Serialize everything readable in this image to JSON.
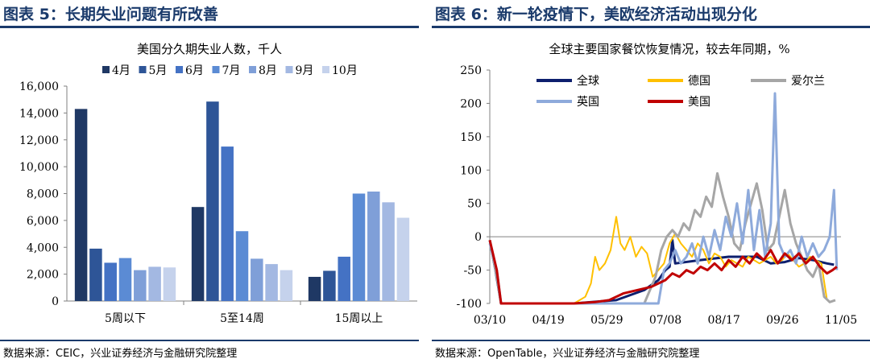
{
  "left": {
    "header": "图表 5：长期失业问题有所改善",
    "footer": "数据来源：CEIC，兴业证券经济与金融研究院整理",
    "chart_data": {
      "type": "bar",
      "title": "美国分久期失业人数，千人",
      "categories": [
        "5周以下",
        "5至14周",
        "15周以上"
      ],
      "series": [
        {
          "name": "4月",
          "color": "#1f3864",
          "values": [
            14300,
            7000,
            1800
          ]
        },
        {
          "name": "5月",
          "color": "#2e5597",
          "values": [
            3900,
            14850,
            2250
          ]
        },
        {
          "name": "6月",
          "color": "#4472c4",
          "values": [
            2850,
            11500,
            3300
          ]
        },
        {
          "name": "7月",
          "color": "#5b8bd4",
          "values": [
            3200,
            5200,
            8000
          ]
        },
        {
          "name": "8月",
          "color": "#7f9fd8",
          "values": [
            2300,
            3150,
            8150
          ]
        },
        {
          "name": "9月",
          "color": "#a3b8e2",
          "values": [
            2550,
            2750,
            7350
          ]
        },
        {
          "name": "10月",
          "color": "#c5d2ec",
          "values": [
            2500,
            2300,
            6200
          ]
        }
      ],
      "ylim": [
        0,
        16000
      ],
      "yticks": [
        0,
        2000,
        4000,
        6000,
        8000,
        10000,
        12000,
        14000,
        16000
      ],
      "ytick_labels": [
        "0",
        "2,000",
        "4,000",
        "6,000",
        "8,000",
        "10,000",
        "12,000",
        "14,000",
        "16,000"
      ],
      "legend_position": "top"
    }
  },
  "right": {
    "header": "图表 6：新一轮疫情下，美欧经济活动出现分化",
    "footer": "数据来源：OpenTable，兴业证券经济与金融研究院整理",
    "chart_data": {
      "type": "line",
      "title": "全球主要国家餐饮恢复情况，较去年同期，%",
      "x": [
        "03/10",
        "04/19",
        "05/29",
        "07/08",
        "08/17",
        "09/26",
        "11/05"
      ],
      "xticks": [
        "03/10",
        "04/19",
        "05/29",
        "07/08",
        "08/17",
        "09/26",
        "11/05"
      ],
      "ylim": [
        -100,
        250
      ],
      "yticks": [
        -100,
        -50,
        0,
        50,
        100,
        150,
        200,
        250
      ],
      "series": [
        {
          "name": "全球",
          "color": "#0d1f6e",
          "width": 3,
          "points": [
            [
              0,
              -5
            ],
            [
              4,
              -50
            ],
            [
              8,
              -100
            ],
            [
              30,
              -100
            ],
            [
              60,
              -100
            ],
            [
              90,
              -95
            ],
            [
              110,
              -80
            ],
            [
              120,
              -65
            ],
            [
              125,
              -50
            ],
            [
              128,
              -45
            ],
            [
              130,
              -5
            ],
            [
              132,
              -40
            ],
            [
              150,
              -35
            ],
            [
              170,
              -30
            ],
            [
              190,
              -30
            ],
            [
              200,
              -40
            ],
            [
              210,
              -38
            ],
            [
              220,
              -32
            ],
            [
              230,
              -35
            ],
            [
              240,
              -40
            ],
            [
              245,
              -42
            ]
          ]
        },
        {
          "name": "德国",
          "color": "#ffc000",
          "width": 2,
          "points": [
            [
              0,
              -5
            ],
            [
              5,
              -60
            ],
            [
              8,
              -100
            ],
            [
              60,
              -100
            ],
            [
              68,
              -90
            ],
            [
              72,
              -70
            ],
            [
              75,
              -30
            ],
            [
              78,
              -50
            ],
            [
              82,
              -40
            ],
            [
              86,
              -20
            ],
            [
              90,
              30
            ],
            [
              93,
              -10
            ],
            [
              96,
              -20
            ],
            [
              100,
              0
            ],
            [
              104,
              -30
            ],
            [
              108,
              -15
            ],
            [
              112,
              -25
            ],
            [
              116,
              -60
            ],
            [
              120,
              -50
            ],
            [
              124,
              -40
            ],
            [
              128,
              -10
            ],
            [
              132,
              5
            ],
            [
              136,
              -10
            ],
            [
              140,
              -20
            ],
            [
              144,
              -30
            ],
            [
              148,
              -10
            ],
            [
              152,
              -20
            ],
            [
              156,
              -40
            ],
            [
              160,
              -25
            ],
            [
              164,
              -30
            ],
            [
              168,
              -45
            ],
            [
              172,
              -35
            ],
            [
              176,
              -40
            ],
            [
              180,
              -45
            ],
            [
              184,
              -30
            ],
            [
              188,
              -35
            ],
            [
              192,
              -40
            ],
            [
              196,
              -35
            ],
            [
              200,
              -30
            ],
            [
              204,
              -40
            ],
            [
              208,
              -35
            ],
            [
              212,
              -25
            ],
            [
              216,
              -35
            ],
            [
              220,
              -45
            ],
            [
              224,
              -40
            ],
            [
              228,
              -30
            ],
            [
              232,
              -35
            ],
            [
              236,
              -40
            ],
            [
              240,
              -95
            ]
          ]
        },
        {
          "name": "爱尔兰",
          "color": "#a6a6a6",
          "width": 3,
          "points": [
            [
              0,
              -5
            ],
            [
              5,
              -60
            ],
            [
              8,
              -100
            ],
            [
              110,
              -100
            ],
            [
              118,
              -60
            ],
            [
              122,
              -20
            ],
            [
              126,
              0
            ],
            [
              130,
              10
            ],
            [
              134,
              0
            ],
            [
              138,
              20
            ],
            [
              142,
              10
            ],
            [
              146,
              40
            ],
            [
              150,
              30
            ],
            [
              154,
              60
            ],
            [
              158,
              45
            ],
            [
              162,
              95
            ],
            [
              166,
              60
            ],
            [
              170,
              30
            ],
            [
              174,
              -10
            ],
            [
              178,
              -20
            ],
            [
              182,
              20
            ],
            [
              186,
              50
            ],
            [
              190,
              80
            ],
            [
              194,
              40
            ],
            [
              198,
              -20
            ],
            [
              202,
              -10
            ],
            [
              206,
              30
            ],
            [
              210,
              70
            ],
            [
              214,
              20
            ],
            [
              218,
              -10
            ],
            [
              222,
              -30
            ],
            [
              226,
              -50
            ],
            [
              230,
              -60
            ],
            [
              234,
              -40
            ],
            [
              238,
              -90
            ],
            [
              242,
              -98
            ],
            [
              246,
              -95
            ]
          ]
        },
        {
          "name": "英国",
          "color": "#8eaadb",
          "width": 3,
          "points": [
            [
              0,
              -10
            ],
            [
              5,
              -50
            ],
            [
              8,
              -100
            ],
            [
              120,
              -100
            ],
            [
              124,
              -50
            ],
            [
              128,
              -40
            ],
            [
              132,
              -20
            ],
            [
              136,
              -40
            ],
            [
              140,
              -30
            ],
            [
              144,
              -10
            ],
            [
              148,
              -40
            ],
            [
              152,
              0
            ],
            [
              156,
              -30
            ],
            [
              160,
              10
            ],
            [
              164,
              -20
            ],
            [
              168,
              30
            ],
            [
              172,
              0
            ],
            [
              176,
              50
            ],
            [
              180,
              -10
            ],
            [
              184,
              70
            ],
            [
              188,
              -20
            ],
            [
              192,
              40
            ],
            [
              196,
              -30
            ],
            [
              200,
              20
            ],
            [
              203,
              215
            ],
            [
              206,
              -10
            ],
            [
              210,
              -30
            ],
            [
              214,
              -20
            ],
            [
              218,
              -40
            ],
            [
              222,
              0
            ],
            [
              226,
              -30
            ],
            [
              230,
              -10
            ],
            [
              234,
              -30
            ],
            [
              238,
              -20
            ],
            [
              242,
              0
            ],
            [
              245,
              70
            ],
            [
              247,
              -50
            ]
          ]
        },
        {
          "name": "美国",
          "color": "#c00000",
          "width": 3,
          "points": [
            [
              0,
              -5
            ],
            [
              5,
              -50
            ],
            [
              8,
              -100
            ],
            [
              60,
              -100
            ],
            [
              75,
              -98
            ],
            [
              85,
              -95
            ],
            [
              95,
              -85
            ],
            [
              105,
              -80
            ],
            [
              115,
              -75
            ],
            [
              120,
              -70
            ],
            [
              125,
              -65
            ],
            [
              130,
              -55
            ],
            [
              135,
              -60
            ],
            [
              140,
              -50
            ],
            [
              145,
              -55
            ],
            [
              150,
              -45
            ],
            [
              155,
              -50
            ],
            [
              160,
              -40
            ],
            [
              165,
              -50
            ],
            [
              170,
              -35
            ],
            [
              175,
              -45
            ],
            [
              180,
              -30
            ],
            [
              185,
              -40
            ],
            [
              190,
              -25
            ],
            [
              195,
              -35
            ],
            [
              200,
              -20
            ],
            [
              205,
              -40
            ],
            [
              210,
              -25
            ],
            [
              215,
              -35
            ],
            [
              220,
              -25
            ],
            [
              225,
              -40
            ],
            [
              230,
              -30
            ],
            [
              235,
              -45
            ],
            [
              240,
              -55
            ],
            [
              244,
              -50
            ],
            [
              247,
              -45
            ]
          ]
        }
      ],
      "legend_position": "top-left"
    }
  }
}
